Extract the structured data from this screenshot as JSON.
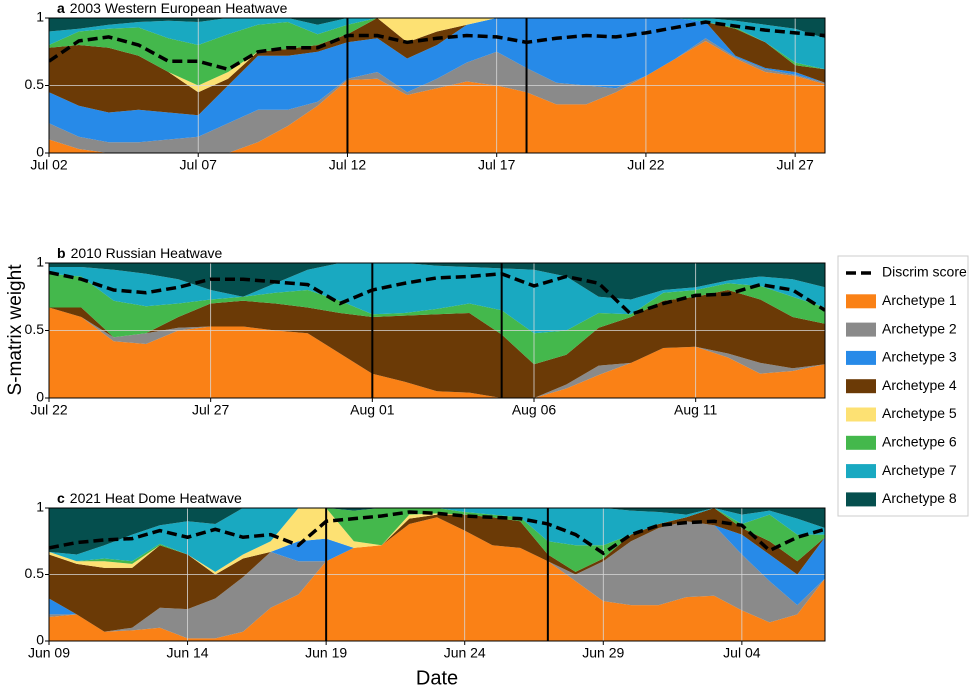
{
  "chart_data": {
    "type": "area",
    "stacked": true,
    "grid": true,
    "legend": "right",
    "ylabel": "S-matrix weight",
    "xlabel": "Date",
    "series": [
      {
        "name": "Archetype 1",
        "color": "#fa8116"
      },
      {
        "name": "Archetype 2",
        "color": "#8a8a8a"
      },
      {
        "name": "Archetype 3",
        "color": "#278ae8"
      },
      {
        "name": "Archetype 4",
        "color": "#6b3a06"
      },
      {
        "name": "Archetype 5",
        "color": "#fde173"
      },
      {
        "name": "Archetype 6",
        "color": "#44b84c"
      },
      {
        "name": "Archetype 7",
        "color": "#19a9c1"
      },
      {
        "name": "Archetype 8",
        "color": "#054f4e"
      }
    ],
    "line": {
      "name": "Discrim score",
      "color": "#000000",
      "style": "dashed"
    },
    "panels": [
      {
        "label": "a",
        "title": "2003 Western European Heatwave",
        "x": [
          "Jul 02",
          "Jul 03",
          "Jul 04",
          "Jul 05",
          "Jul 06",
          "Jul 07",
          "Jul 08",
          "Jul 09",
          "Jul 10",
          "Jul 11",
          "Jul 12",
          "Jul 13",
          "Jul 14",
          "Jul 15",
          "Jul 16",
          "Jul 17",
          "Jul 18",
          "Jul 19",
          "Jul 20",
          "Jul 21",
          "Jul 22",
          "Jul 23",
          "Jul 24",
          "Jul 25",
          "Jul 26",
          "Jul 27",
          "Jul 28"
        ],
        "xlim": [
          "Jul 02",
          "Jul 28"
        ],
        "xticks": [
          "Jul 02",
          "Jul 07",
          "Jul 12",
          "Jul 17",
          "Jul 22",
          "Jul 27"
        ],
        "ylim": [
          0,
          1
        ],
        "yticks": [
          0,
          0.5,
          1
        ],
        "vlines": [
          "Jul 12",
          "Jul 18"
        ],
        "series": [
          {
            "values": [
              0.1,
              0.03,
              0,
              0,
              0,
              0,
              0,
              0.08,
              0.2,
              0.35,
              0.54,
              0.55,
              0.43,
              0.48,
              0.53,
              0.5,
              0.45,
              0.36,
              0.36,
              0.45,
              0.57,
              0.7,
              0.83,
              0.7,
              0.6,
              0.57,
              0.51
            ]
          },
          {
            "values": [
              0.12,
              0.09,
              0.08,
              0.08,
              0.1,
              0.12,
              0.22,
              0.24,
              0.12,
              0.03,
              0.01,
              0.05,
              0.02,
              0.07,
              0.14,
              0.25,
              0.18,
              0.16,
              0.14,
              0.03,
              0,
              0,
              0.02,
              0.01,
              0.02,
              0.01,
              0.01
            ]
          },
          {
            "values": [
              0.23,
              0.23,
              0.22,
              0.24,
              0.2,
              0.16,
              0.28,
              0.4,
              0.4,
              0.37,
              0.27,
              0.25,
              0.25,
              0.25,
              0.28,
              0.25,
              0.37,
              0.48,
              0.5,
              0.52,
              0.43,
              0.3,
              0.12,
              0.01,
              0.01,
              0.02,
              0
            ]
          },
          {
            "values": [
              0.33,
              0.45,
              0.48,
              0.4,
              0.3,
              0.17,
              0.05,
              0.03,
              0.05,
              0.05,
              0.06,
              0.15,
              0.12,
              0.1,
              0,
              0,
              0,
              0,
              0,
              0,
              0,
              0,
              0,
              0.2,
              0.19,
              0.05,
              0.1
            ]
          },
          {
            "values": [
              0,
              0,
              0,
              0,
              0,
              0.05,
              0.05,
              0,
              0,
              0,
              0,
              0,
              0.18,
              0.1,
              0.05,
              0,
              0,
              0,
              0,
              0,
              0,
              0,
              0,
              0,
              0,
              0,
              0
            ]
          },
          {
            "values": [
              0.02,
              0.1,
              0.14,
              0.21,
              0.25,
              0.3,
              0.28,
              0.2,
              0.2,
              0.08,
              0.07,
              0,
              0,
              0,
              0,
              0,
              0,
              0,
              0,
              0,
              0,
              0,
              0,
              0.01,
              0,
              0.02,
              0
            ]
          },
          {
            "values": [
              0.1,
              0.02,
              0.03,
              0.04,
              0.13,
              0.17,
              0.12,
              0.05,
              0.03,
              0.07,
              0.05,
              0,
              0,
              0,
              0,
              0,
              0,
              0,
              0,
              0,
              0,
              0,
              0.03,
              0.05,
              0.13,
              0.25,
              0.23
            ]
          },
          {
            "values": [
              0.1,
              0.08,
              0.05,
              0.03,
              0.02,
              0.03,
              0,
              0,
              0,
              0.05,
              0,
              0,
              0,
              0,
              0,
              0,
              0,
              0,
              0,
              0,
              0,
              0,
              0,
              0.02,
              0.05,
              0.08,
              0.15
            ]
          }
        ],
        "line": {
          "values": [
            0.68,
            0.83,
            0.86,
            0.8,
            0.68,
            0.68,
            0.62,
            0.75,
            0.78,
            0.78,
            0.87,
            0.87,
            0.82,
            0.85,
            0.87,
            0.86,
            0.82,
            0.85,
            0.87,
            0.86,
            0.89,
            0.93,
            0.97,
            0.94,
            0.91,
            0.89,
            0.87
          ]
        }
      },
      {
        "label": "b",
        "title": "2010 Russian Heatwave",
        "x": [
          "Jul 22",
          "Jul 23",
          "Jul 24",
          "Jul 25",
          "Jul 26",
          "Jul 27",
          "Jul 28",
          "Jul 29",
          "Jul 30",
          "Jul 31",
          "Aug 01",
          "Aug 02",
          "Aug 03",
          "Aug 04",
          "Aug 05",
          "Aug 06",
          "Aug 07",
          "Aug 08",
          "Aug 09",
          "Aug 10",
          "Aug 11",
          "Aug 12",
          "Aug 13",
          "Aug 14",
          "Aug 15"
        ],
        "xlim": [
          "Jul 22",
          "Aug 15"
        ],
        "xticks": [
          "Jul 22",
          "Jul 27",
          "Aug 01",
          "Aug 06",
          "Aug 11"
        ],
        "ylim": [
          0,
          1
        ],
        "yticks": [
          0,
          0.5,
          1
        ],
        "vlines": [
          "Aug 01",
          "Aug 05"
        ],
        "series": [
          {
            "values": [
              0.67,
              0.6,
              0.42,
              0.4,
              0.5,
              0.53,
              0.53,
              0.5,
              0.48,
              0.33,
              0.18,
              0.12,
              0.05,
              0.04,
              0,
              0,
              0.07,
              0.17,
              0.26,
              0.37,
              0.38,
              0.3,
              0.18,
              0.2,
              0.25
            ]
          },
          {
            "values": [
              0,
              0,
              0.03,
              0.08,
              0.02,
              0,
              0,
              0,
              0,
              0,
              0,
              0,
              0,
              0,
              0,
              0,
              0.03,
              0.07,
              0,
              0,
              0,
              0.03,
              0.08,
              0.02,
              0
            ]
          },
          {
            "values": [
              0,
              0,
              0,
              0,
              0,
              0,
              0,
              0,
              0,
              0,
              0,
              0,
              0,
              0,
              0,
              0,
              0,
              0,
              0,
              0,
              0,
              0,
              0,
              0,
              0
            ]
          },
          {
            "values": [
              0,
              0.07,
              0,
              0,
              0.08,
              0.17,
              0.19,
              0.2,
              0.19,
              0.3,
              0.42,
              0.49,
              0.57,
              0.59,
              0.47,
              0.25,
              0.22,
              0.28,
              0.34,
              0.35,
              0.37,
              0.47,
              0.47,
              0.38,
              0.3
            ]
          },
          {
            "values": [
              0,
              0,
              0,
              0,
              0,
              0,
              0,
              0,
              0,
              0,
              0,
              0,
              0,
              0,
              0,
              0,
              0,
              0,
              0,
              0,
              0,
              0,
              0,
              0,
              0
            ]
          },
          {
            "values": [
              0.25,
              0.23,
              0.27,
              0.2,
              0.1,
              0.03,
              0.03,
              0.08,
              0.13,
              0.09,
              0.02,
              0.02,
              0.04,
              0.07,
              0.18,
              0.23,
              0.18,
              0.11,
              0.02,
              0.06,
              0.05,
              0.05,
              0.1,
              0.15,
              0.12
            ]
          },
          {
            "values": [
              0.05,
              0.07,
              0.23,
              0.24,
              0.18,
              0.07,
              0,
              0.07,
              0.15,
              0.28,
              0.38,
              0.37,
              0.32,
              0.27,
              0.31,
              0.47,
              0.4,
              0.12,
              0.11,
              0.02,
              0.02,
              0.02,
              0.07,
              0.13,
              0.15
            ]
          },
          {
            "values": [
              0.03,
              0.03,
              0.05,
              0.08,
              0.12,
              0.2,
              0.25,
              0.15,
              0.05,
              0,
              0,
              0,
              0.02,
              0.03,
              0.04,
              0.05,
              0.1,
              0.25,
              0.27,
              0.2,
              0.18,
              0.13,
              0.1,
              0.12,
              0.18
            ]
          }
        ],
        "line": {
          "values": [
            0.93,
            0.88,
            0.8,
            0.78,
            0.82,
            0.88,
            0.88,
            0.86,
            0.84,
            0.7,
            0.8,
            0.85,
            0.89,
            0.9,
            0.92,
            0.83,
            0.9,
            0.85,
            0.62,
            0.7,
            0.76,
            0.77,
            0.84,
            0.8,
            0.65
          ]
        }
      },
      {
        "label": "c",
        "title": "2021 Heat Dome Heatwave",
        "x": [
          "Jun 09",
          "Jun 10",
          "Jun 11",
          "Jun 12",
          "Jun 13",
          "Jun 14",
          "Jun 15",
          "Jun 16",
          "Jun 17",
          "Jun 18",
          "Jun 19",
          "Jun 20",
          "Jun 21",
          "Jun 22",
          "Jun 23",
          "Jun 24",
          "Jun 25",
          "Jun 26",
          "Jun 27",
          "Jun 28",
          "Jun 29",
          "Jun 30",
          "Jul 01",
          "Jul 02",
          "Jul 03",
          "Jul 04",
          "Jul 05",
          "Jul 06",
          "Jul 07"
        ],
        "xlim": [
          "Jun 09",
          "Jul 07"
        ],
        "xticks": [
          "Jun 09",
          "Jun 14",
          "Jun 19",
          "Jun 24",
          "Jun 29",
          "Jul 04"
        ],
        "ylim": [
          0,
          1
        ],
        "yticks": [
          0,
          0.5,
          1
        ],
        "vlines": [
          "Jun 19",
          "Jun 27"
        ],
        "series": [
          {
            "values": [
              0.18,
              0.2,
              0.07,
              0.08,
              0.1,
              0.02,
              0.02,
              0.07,
              0.25,
              0.35,
              0.6,
              0.7,
              0.72,
              0.88,
              0.93,
              0.83,
              0.72,
              0.7,
              0.6,
              0.45,
              0.3,
              0.27,
              0.27,
              0.33,
              0.34,
              0.23,
              0.14,
              0.2,
              0.47
            ]
          },
          {
            "values": [
              0.02,
              0,
              0,
              0.02,
              0.15,
              0.22,
              0.3,
              0.41,
              0.42,
              0.25,
              0,
              0,
              0,
              0,
              0,
              0,
              0,
              0,
              0,
              0.05,
              0.3,
              0.48,
              0.58,
              0.57,
              0.53,
              0.42,
              0.31,
              0.07,
              0
            ]
          },
          {
            "values": [
              0.12,
              0,
              0,
              0,
              0,
              0,
              0,
              0,
              0,
              0.15,
              0.17,
              0,
              0,
              0,
              0,
              0,
              0,
              0,
              0,
              0,
              0,
              0,
              0,
              0,
              0,
              0.15,
              0.2,
              0.23,
              0.31
            ]
          },
          {
            "values": [
              0.33,
              0.38,
              0.48,
              0.45,
              0.47,
              0.41,
              0.18,
              0.14,
              0,
              0,
              0,
              0,
              0,
              0.04,
              0.02,
              0.12,
              0.21,
              0.2,
              0.05,
              0.02,
              0.02,
              0.05,
              0.03,
              0.03,
              0.13,
              0.05,
              0.1,
              0.1,
              0
            ]
          },
          {
            "values": [
              0.02,
              0.02,
              0.05,
              0.03,
              0,
              0,
              0.02,
              0.03,
              0.08,
              0.25,
              0.23,
              0.05,
              0,
              0.03,
              0.01,
              0,
              0,
              0,
              0,
              0,
              0,
              0,
              0,
              0,
              0,
              0,
              0,
              0,
              0
            ]
          },
          {
            "values": [
              0,
              0,
              0.02,
              0.02,
              0.01,
              0,
              0,
              0,
              0,
              0,
              0,
              0.23,
              0.28,
              0.05,
              0.04,
              0.02,
              0.02,
              0.03,
              0.1,
              0.2,
              0.1,
              0,
              0,
              0,
              0,
              0.03,
              0.2,
              0.2,
              0.02
            ]
          },
          {
            "values": [
              0,
              0.05,
              0.1,
              0.2,
              0.14,
              0.25,
              0.36,
              0.35,
              0.25,
              0,
              0,
              0,
              0,
              0,
              0,
              0.03,
              0.05,
              0.07,
              0.25,
              0.28,
              0.28,
              0.18,
              0.09,
              0.02,
              0,
              0.07,
              0.03,
              0.12,
              0.05
            ]
          },
          {
            "values": [
              0.33,
              0.35,
              0.28,
              0.2,
              0.13,
              0.1,
              0.12,
              0,
              0,
              0,
              0,
              0.02,
              0,
              0,
              0,
              0,
              0,
              0,
              0,
              0,
              0,
              0.02,
              0.03,
              0.05,
              0,
              0.05,
              0.02,
              0.08,
              0.15
            ]
          }
        ],
        "line": {
          "values": [
            0.7,
            0.74,
            0.76,
            0.77,
            0.83,
            0.78,
            0.84,
            0.78,
            0.8,
            0.72,
            0.9,
            0.92,
            0.94,
            0.97,
            0.96,
            0.94,
            0.93,
            0.92,
            0.88,
            0.8,
            0.66,
            0.8,
            0.87,
            0.89,
            0.9,
            0.87,
            0.68,
            0.78,
            0.84
          ]
        }
      }
    ]
  }
}
